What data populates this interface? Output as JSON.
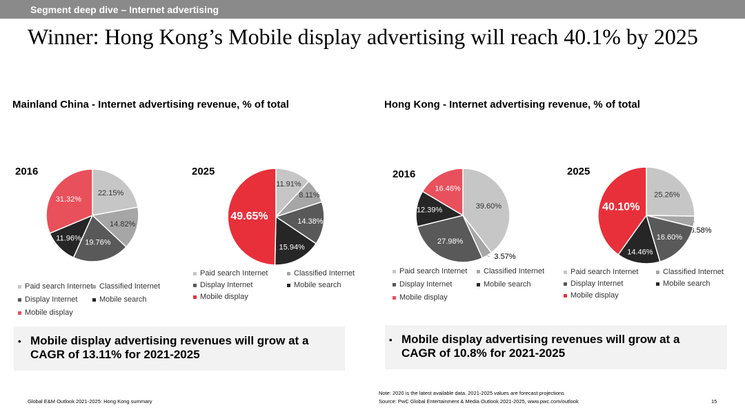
{
  "header": {
    "section_label": "Segment deep dive – Internet advertising"
  },
  "headline": "Winner: Hong Kong’s Mobile display advertising will reach 40.1% by 2025",
  "legend_colors": {
    "Paid search Internet": "#c6c6c6",
    "Classified Internet": "#a6a6a6",
    "Display Internet": "#595959",
    "Mobile search": "#262626",
    "Mobile display": "#e8505b"
  },
  "highlight_color": "#e8303a",
  "panels": [
    {
      "title": "Mainland China - Internet advertising revenue, % of total",
      "callout": "Mobile display advertising revenues will grow at a CAGR of 13.11% for 2021-2025",
      "legend_rows": [
        [
          "Paid search Internet",
          "Classified Internet"
        ],
        [
          "Display Internet",
          "Mobile search"
        ],
        [
          "Mobile display"
        ]
      ],
      "legend_2025_rows": [
        [
          "Paid search Internet",
          "Classified Internet"
        ],
        [
          "Display Internet",
          "Mobile search"
        ],
        [
          "Mobile display"
        ]
      ]
    },
    {
      "title": "Hong Kong - Internet advertising revenue, % of total",
      "callout": "Mobile display advertising revenues will grow at a CAGR of 10.8% for 2021-2025",
      "legend_rows": [
        [
          "Paid search Internet",
          "Classified Internet"
        ],
        [
          "Display Internet",
          "Mobile search"
        ],
        [
          "Mobile display"
        ]
      ],
      "legend_2025_rows": [
        [
          "Paid search Internet",
          "Classified Internet"
        ],
        [
          "Display Internet",
          "Mobile search"
        ],
        [
          "Mobile display"
        ]
      ]
    }
  ],
  "chart_data": [
    {
      "type": "pie",
      "title": "2016",
      "region": "Mainland China",
      "series": [
        {
          "name": "Paid search Internet",
          "value": 22.15,
          "label": "22.15%"
        },
        {
          "name": "Classified Internet",
          "value": 14.82,
          "label": "14.82%"
        },
        {
          "name": "Display Internet",
          "value": 19.76,
          "label": "19.76%"
        },
        {
          "name": "Mobile search",
          "value": 11.96,
          "label": "11.96%"
        },
        {
          "name": "Mobile display",
          "value": 31.32,
          "label": "31.32%"
        }
      ]
    },
    {
      "type": "pie",
      "title": "2025",
      "region": "Mainland China",
      "series": [
        {
          "name": "Paid search Internet",
          "value": 11.91,
          "label": "11.91%"
        },
        {
          "name": "Classified Internet",
          "value": 8.11,
          "label": "8.11%"
        },
        {
          "name": "Display Internet",
          "value": 14.38,
          "label": "14.38%"
        },
        {
          "name": "Mobile search",
          "value": 15.94,
          "label": "15.94%"
        },
        {
          "name": "Mobile display",
          "value": 49.65,
          "label": "49.65%",
          "highlight": true
        }
      ]
    },
    {
      "type": "pie",
      "title": "2016",
      "region": "Hong Kong",
      "series": [
        {
          "name": "Paid search Internet",
          "value": 39.6,
          "label": "39.60%"
        },
        {
          "name": "Classified Internet",
          "value": 3.57,
          "label": "3.57%"
        },
        {
          "name": "Display Internet",
          "value": 27.98,
          "label": "27.98%"
        },
        {
          "name": "Mobile search",
          "value": 12.39,
          "label": "12.39%"
        },
        {
          "name": "Mobile display",
          "value": 16.46,
          "label": "16.46%"
        }
      ]
    },
    {
      "type": "pie",
      "title": "2025",
      "region": "Hong Kong",
      "series": [
        {
          "name": "Paid search Internet",
          "value": 25.26,
          "label": "25.26%"
        },
        {
          "name": "Classified Internet",
          "value": 3.58,
          "label": "3.58%"
        },
        {
          "name": "Display Internet",
          "value": 16.6,
          "label": "16.60%"
        },
        {
          "name": "Mobile search",
          "value": 14.46,
          "label": "14.46%"
        },
        {
          "name": "Mobile display",
          "value": 40.1,
          "label": "40.10%",
          "highlight": true
        }
      ]
    }
  ],
  "footer": {
    "left": "Global E&M Outlook 2021-2025: Hong Kong summary",
    "note": "Note: 2020 is the latest available data. 2021-2025 values are forecast projections",
    "source": "Source: PwC Global Entertainment & Media Outlook 2021-2025, www.pwc.com/outlook",
    "page_number": "15"
  }
}
